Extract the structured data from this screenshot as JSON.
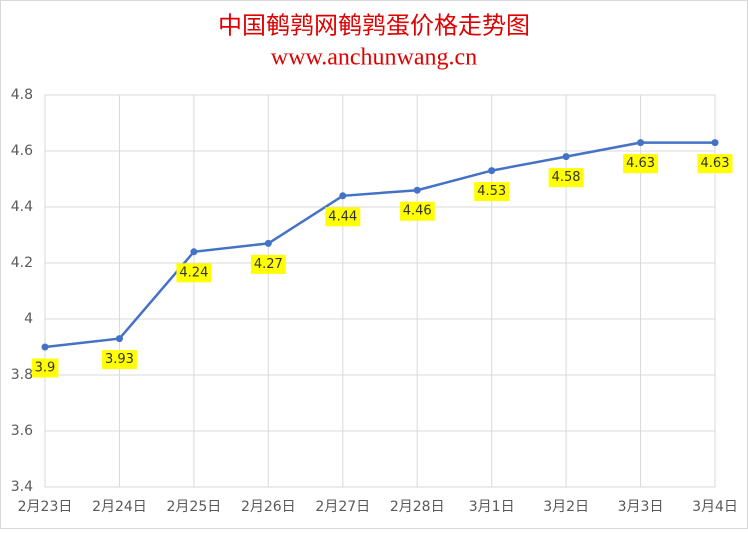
{
  "chart_data": {
    "type": "line",
    "title": "中国鹌鹑网鹌鹑蛋价格走势图",
    "subtitle": "www.anchunwang.cn",
    "categories": [
      "2月23日",
      "2月24日",
      "2月25日",
      "2月26日",
      "2月27日",
      "2月28日",
      "3月1日",
      "3月2日",
      "3月3日",
      "3月4日"
    ],
    "series": [
      {
        "color": "#4472c4",
        "values": [
          3.9,
          3.93,
          4.24,
          4.27,
          4.44,
          4.46,
          4.53,
          4.58,
          4.63,
          4.63
        ]
      }
    ],
    "ylim": [
      3.4,
      4.8
    ],
    "yticks": [
      3.4,
      3.6,
      3.8,
      4,
      4.2,
      4.4,
      4.6,
      4.8
    ],
    "grid": true,
    "label_color": "#ffff00",
    "title_color": "#e00000"
  }
}
